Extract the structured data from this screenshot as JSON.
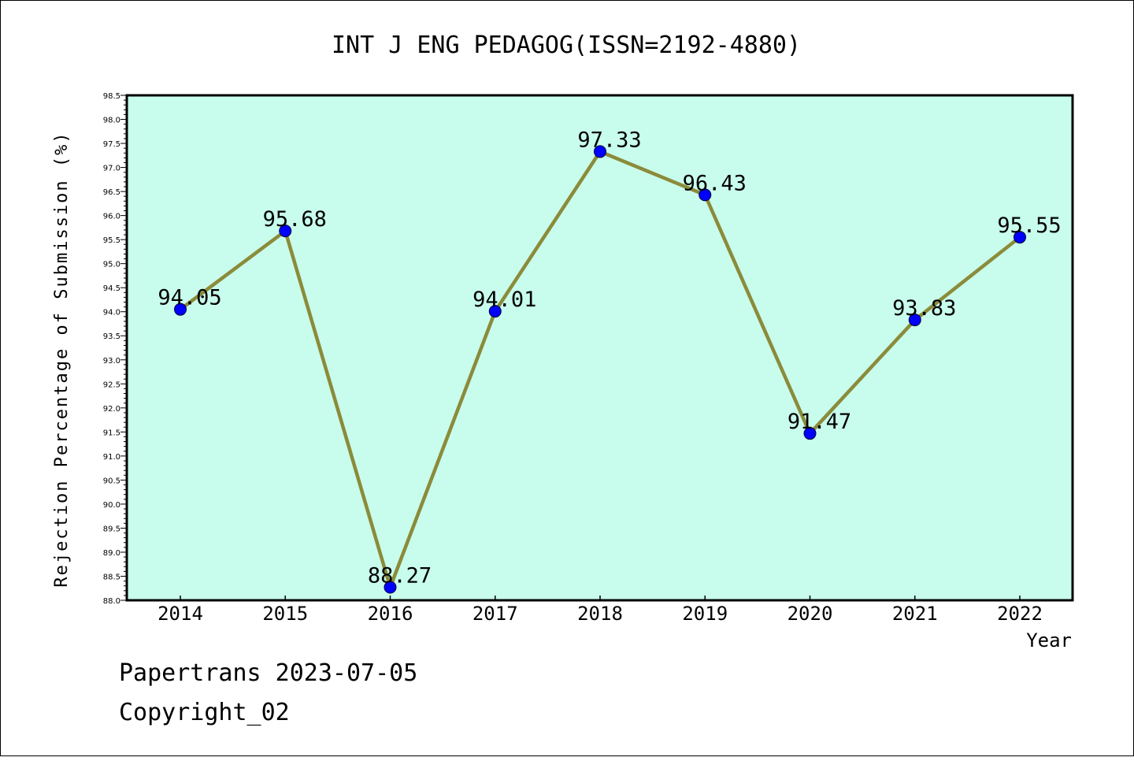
{
  "chart_data": {
    "type": "line",
    "title": "INT J ENG PEDAGOG(ISSN=2192-4880)",
    "xlabel": "Year",
    "ylabel": "Rejection Percentage of Submission (%)",
    "x": [
      "2014",
      "2015",
      "2016",
      "2017",
      "2018",
      "2019",
      "2020",
      "2021",
      "2022"
    ],
    "series": [
      {
        "values": [
          94.05,
          95.68,
          88.27,
          94.01,
          97.33,
          96.43,
          91.47,
          93.83,
          95.55
        ]
      }
    ],
    "data_labels": [
      "94.05",
      "95.68",
      "88.27",
      "94.01",
      "97.33",
      "96.43",
      "91.47",
      "93.83",
      "95.55"
    ],
    "ylim": [
      88.0,
      98.5
    ],
    "yticks": [
      "88.0",
      "88.5",
      "89.0",
      "89.5",
      "90.0",
      "90.5",
      "91.0",
      "91.5",
      "92.0",
      "92.5",
      "93.0",
      "93.5",
      "94.0",
      "94.5",
      "95.0",
      "95.5",
      "96.0",
      "96.5",
      "97.0",
      "97.5",
      "98.0",
      "98.5"
    ],
    "grid": false,
    "colors": {
      "plot_background": "#c8fcec",
      "line": "#8b8b3a",
      "marker": "#0000ff"
    }
  },
  "footer": {
    "line1": "Papertrans 2023-07-05",
    "line2": "Copyright_02"
  }
}
